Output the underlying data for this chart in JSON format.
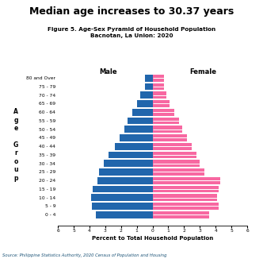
{
  "title": "Median age increases to 30.37 years",
  "subtitle": "Figure 5. Age-Sex Pyramid of Household Population\nBacnotan, La Union: 2020",
  "source": "Source: Philippine Statistics Authority, 2020 Census of Population and Housing",
  "xlabel": "Percent to Total Household Population",
  "age_groups": [
    "0 - 4",
    "5 - 9",
    "10 - 14",
    "15 - 19",
    "20 - 24",
    "25 - 29",
    "30 - 34",
    "35 - 39",
    "40 - 44",
    "45 - 49",
    "50 - 54",
    "55 - 59",
    "60 - 64",
    "65 - 69",
    "70 - 74",
    "75 - 79",
    "80 and Over"
  ],
  "male": [
    3.6,
    3.85,
    3.9,
    3.8,
    3.5,
    3.4,
    3.1,
    2.8,
    2.4,
    2.1,
    1.8,
    1.6,
    1.3,
    1.0,
    0.8,
    0.5,
    0.5
  ],
  "female": [
    3.6,
    4.2,
    4.1,
    4.2,
    4.3,
    3.3,
    3.0,
    2.8,
    2.5,
    2.2,
    1.9,
    1.7,
    1.4,
    1.1,
    0.9,
    0.7,
    0.7
  ],
  "male_color": "#2166ac",
  "female_color": "#f768a1",
  "background_color": "#ffffff",
  "xlim": 6,
  "title_color": "#000000",
  "source_color": "#1a5276",
  "ylabel_chars": [
    "A",
    "g",
    "e",
    "",
    "G",
    "r",
    "o",
    "u",
    "p"
  ]
}
